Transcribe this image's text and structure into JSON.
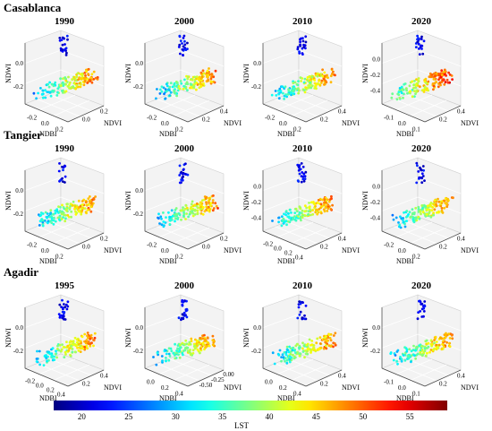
{
  "colorbar": {
    "label": "LST",
    "min": 17,
    "max": 59,
    "ticks": [
      "20",
      "25",
      "30",
      "35",
      "40",
      "45",
      "50",
      "55"
    ],
    "tick_values": [
      20,
      25,
      30,
      35,
      40,
      45,
      50,
      55
    ],
    "colormap": "jet"
  },
  "rows": [
    {
      "city": "Casablanca",
      "panels": [
        {
          "year": "1990",
          "ndvi_ticks": [
            "0.0",
            "0.2"
          ],
          "ndbi_ticks": [
            "-0.2",
            "0.0",
            "0.2"
          ],
          "ndwi_ticks": [
            "0.0",
            "-0.2"
          ]
        },
        {
          "year": "2000",
          "ndvi_ticks": [
            "0.2",
            "0.4"
          ],
          "ndbi_ticks": [
            "-0.2",
            "0.0",
            "0.2"
          ],
          "ndwi_ticks": [
            "0.0",
            "-0.2"
          ]
        },
        {
          "year": "2010",
          "ndvi_ticks": [
            "0.2",
            "0.4"
          ],
          "ndbi_ticks": [
            "-0.2",
            "0.0",
            "0.2"
          ],
          "ndwi_ticks": [
            "0.0",
            "-0.2"
          ]
        },
        {
          "year": "2020",
          "ndvi_ticks": [
            "0.2",
            "0.4"
          ],
          "ndbi_ticks": [
            "-0.1",
            "0.0",
            "0.1"
          ],
          "ndwi_ticks": [
            "0.0",
            "-0.2",
            "-0.4"
          ]
        }
      ]
    },
    {
      "city": "Tangier",
      "panels": [
        {
          "year": "1990",
          "ndvi_ticks": [
            "0.0",
            "0.2"
          ],
          "ndbi_ticks": [
            "-0.2",
            "0.0",
            "0.2"
          ],
          "ndwi_ticks": [
            "0.0",
            "-0.2"
          ]
        },
        {
          "year": "2000",
          "ndvi_ticks": [
            "0.0",
            "0.2"
          ],
          "ndbi_ticks": [
            "-0.2",
            "0.0",
            "0.2"
          ],
          "ndwi_ticks": [
            "0.0",
            "-0.2"
          ]
        },
        {
          "year": "2010",
          "ndvi_ticks": [
            "0.2",
            "0.4"
          ],
          "ndbi_ticks": [
            "-0.2",
            "0.0",
            "0.2",
            "0.4"
          ],
          "ndwi_ticks": [
            "0.0",
            "-0.2",
            "-0.4"
          ]
        },
        {
          "year": "2020",
          "ndvi_ticks": [
            "0.2",
            "0.4"
          ],
          "ndbi_ticks": [
            "-0.2",
            "0.0",
            "0.2"
          ],
          "ndwi_ticks": [
            "0.0",
            "-0.2",
            "-0.4"
          ]
        }
      ]
    },
    {
      "city": "Agadir",
      "panels": [
        {
          "year": "1995",
          "ndvi_ticks": [
            "0.2",
            "0.4"
          ],
          "ndbi_ticks": [
            "-0.2",
            "0.0",
            "0.2",
            "0.4"
          ],
          "ndwi_ticks": [
            "0.0",
            "-0.2"
          ]
        },
        {
          "year": "2000",
          "ndvi_ticks": [
            "-0.50",
            "-0.25",
            "0.00"
          ],
          "ndbi_ticks": [
            "0.0",
            "0.2",
            "0.4"
          ],
          "ndwi_ticks": [
            "0.0",
            "-0.2"
          ]
        },
        {
          "year": "2010",
          "ndvi_ticks": [
            "0.2",
            "0.4"
          ],
          "ndbi_ticks": [
            "0.0",
            "0.2",
            "0.4"
          ],
          "ndwi_ticks": [
            "0.0",
            "-0.2"
          ]
        },
        {
          "year": "2020",
          "ndvi_ticks": [
            "0.2",
            "0.4"
          ],
          "ndbi_ticks": [
            "-0.1",
            "0.0",
            "0.1"
          ],
          "ndwi_ticks": [
            "0.0",
            "-0.2"
          ]
        }
      ]
    }
  ],
  "axis_labels": {
    "x": "NDBI",
    "y": "NDVI",
    "z": "NDWI"
  },
  "chart_data": {
    "type": "scatter",
    "subtype": "3d-scatter-grid",
    "axes": {
      "x": "NDBI",
      "y": "NDVI",
      "z": "NDWI"
    },
    "color_variable": "LST",
    "color_range": [
      17,
      59
    ],
    "panels_per_row": 4,
    "row_titles": [
      "Casablanca",
      "Tangier",
      "Agadir"
    ]
  }
}
